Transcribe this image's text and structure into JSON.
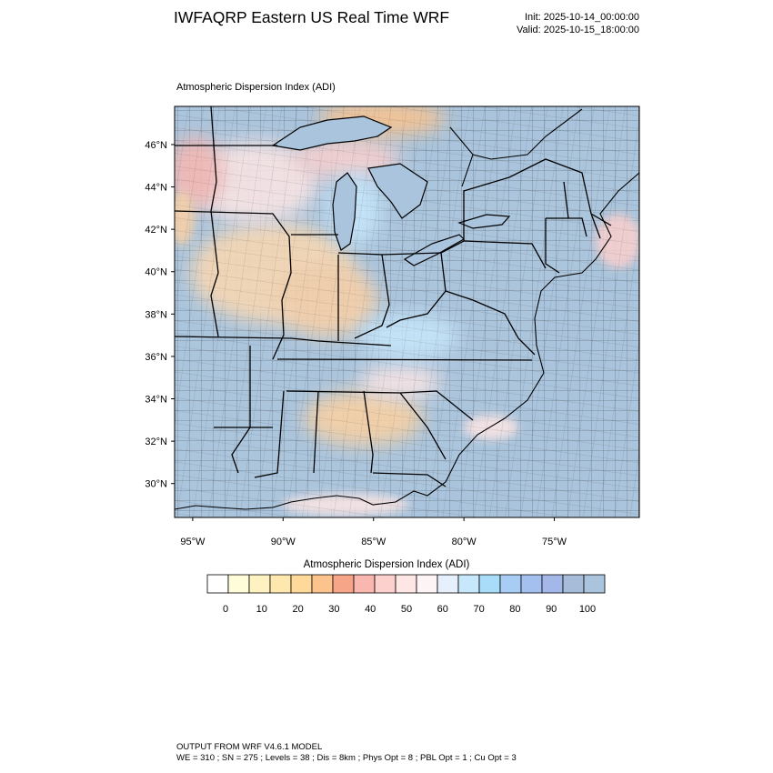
{
  "header": {
    "title": "IWFAQRP Eastern US Real Time WRF",
    "init": "Init: 2025-10-14_00:00:00",
    "valid": "Valid: 2025-10-15_18:00:00"
  },
  "plot": {
    "title": "Atmospheric Dispersion Index   (ADI)",
    "lon_range": [
      -96.0,
      -70.3
    ],
    "lat_range": [
      28.4,
      47.8
    ],
    "lat_ticks": [
      {
        "value": 30,
        "label": "30°N"
      },
      {
        "value": 32,
        "label": "32°N"
      },
      {
        "value": 34,
        "label": "34°N"
      },
      {
        "value": 36,
        "label": "36°N"
      },
      {
        "value": 38,
        "label": "38°N"
      },
      {
        "value": 40,
        "label": "40°N"
      },
      {
        "value": 42,
        "label": "42°N"
      },
      {
        "value": 44,
        "label": "44°N"
      },
      {
        "value": 46,
        "label": "46°N"
      }
    ],
    "lon_ticks": [
      {
        "value": -95,
        "label": "95°W"
      },
      {
        "value": -90,
        "label": "90°W"
      },
      {
        "value": -85,
        "label": "85°W"
      },
      {
        "value": -80,
        "label": "80°W"
      },
      {
        "value": -75,
        "label": "75°W"
      }
    ],
    "colors": {
      "water": "#a9c4dc",
      "land_base": "#abc5dd",
      "border": "#000000",
      "county": "#222222"
    }
  },
  "colorbar": {
    "title": "Atmospheric Dispersion Index  (ADI)",
    "colors": [
      "#ffffff",
      "#fffcd9",
      "#fff2c2",
      "#ffe8ad",
      "#ffd99a",
      "#fcc38c",
      "#f7a589",
      "#f9b7b0",
      "#fcd0cd",
      "#fde6e4",
      "#fdf4f5",
      "#e6f0fc",
      "#c7e7fb",
      "#a8dcf8",
      "#a8cdf4",
      "#a4c0ee",
      "#a3b8e8",
      "#a7bcd8",
      "#a9c4dc"
    ],
    "labels": [
      "0",
      "10",
      "20",
      "30",
      "40",
      "50",
      "60",
      "70",
      "80",
      "90",
      "100"
    ]
  },
  "footer": {
    "line1": "OUTPUT FROM WRF V4.6.1 MODEL",
    "line2": "WE = 310 ; SN = 275 ; Levels = 38 ; Dis = 8km ; Phys Opt = 8 ; PBL Opt = 1 ; Cu Opt = 3"
  }
}
